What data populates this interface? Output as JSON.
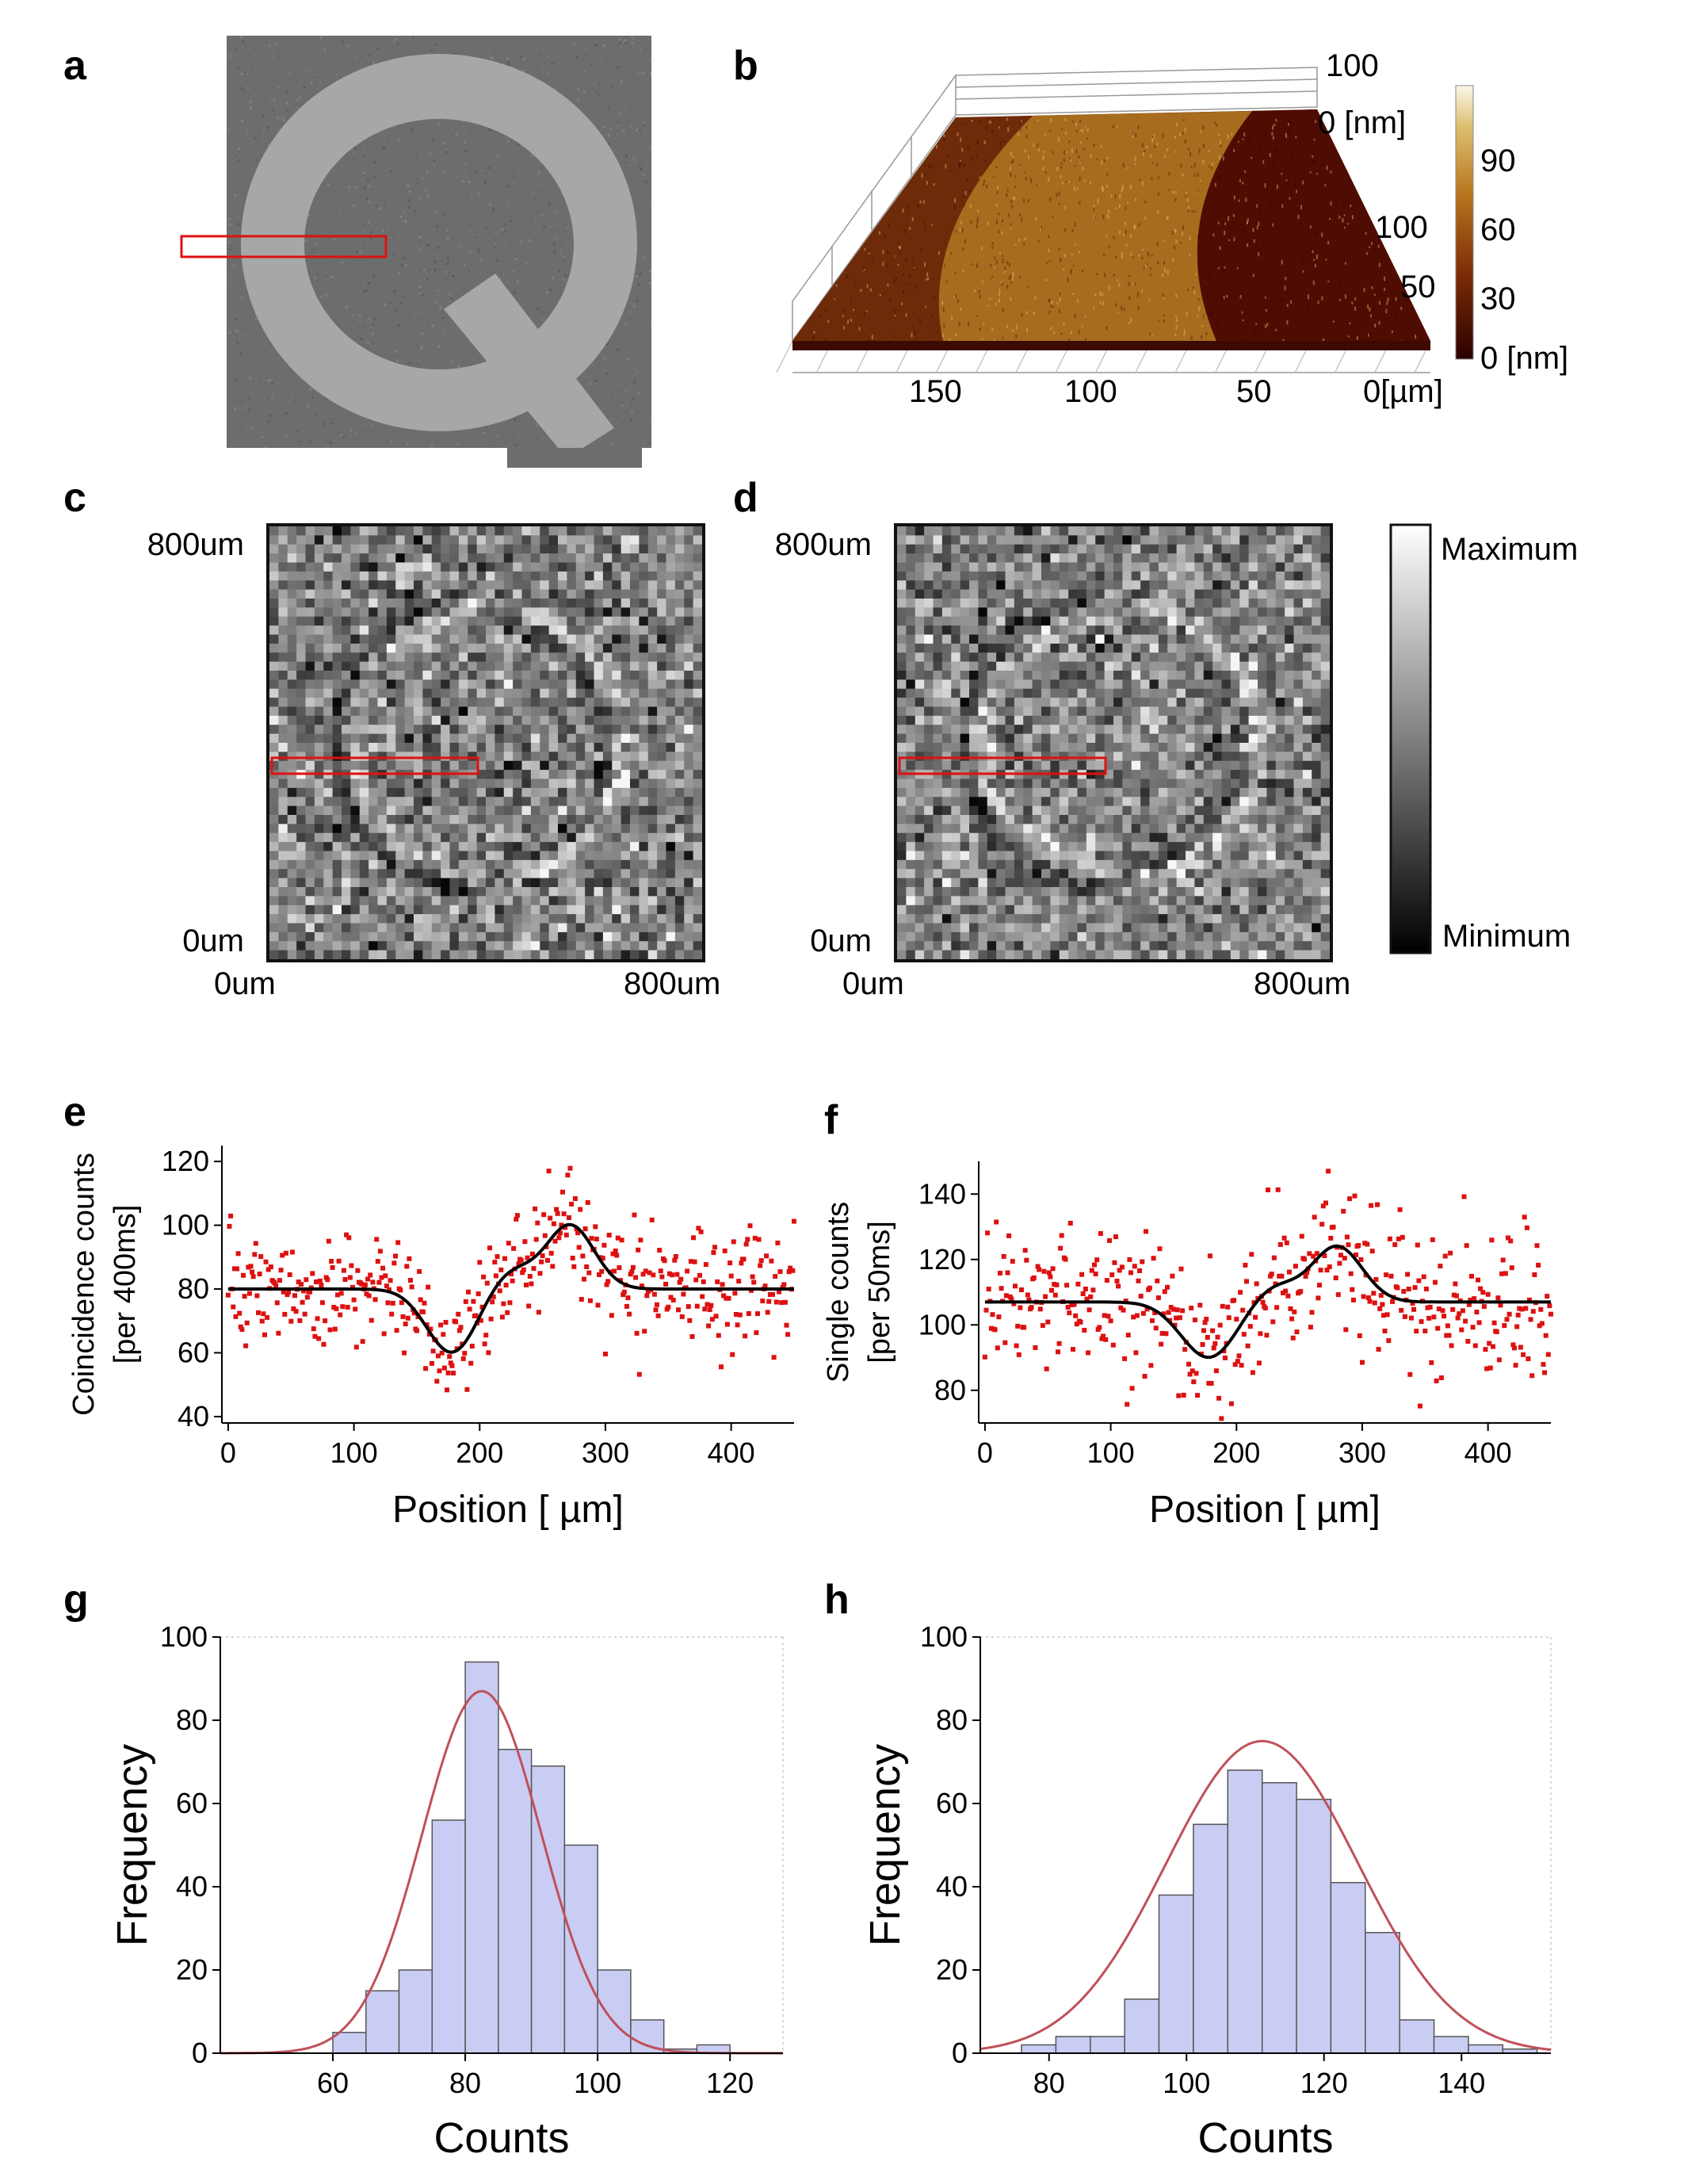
{
  "panels": {
    "a": {
      "label": "a"
    },
    "b": {
      "label": "b",
      "z_labels": [
        "100",
        "0 [nm]"
      ],
      "y_labels": [
        "100",
        "50"
      ],
      "x_labels": [
        "150",
        "100",
        "50",
        "0[µm]"
      ],
      "colorbar_labels": [
        "90",
        "60",
        "30",
        "0 [nm]"
      ]
    },
    "c": {
      "label": "c",
      "y_top": "800um",
      "y_bottom": "0um",
      "x_left": "0um",
      "x_right": "800um"
    },
    "d": {
      "label": "d",
      "y_top": "800um",
      "y_bottom": "0um",
      "x_left": "0um",
      "x_right": "800um"
    },
    "gray_colorbar": {
      "max_label": "Maximum",
      "min_label": "Minimum"
    },
    "e": {
      "label": "e"
    },
    "f": {
      "label": "f"
    },
    "g": {
      "label": "g"
    },
    "h": {
      "label": "h"
    }
  },
  "colors": {
    "scatter": "#dd1111",
    "fit": "#000000",
    "hist_fill": "#c9cdf3",
    "hist_fit": "#c0505a",
    "roi": "#dd1111"
  },
  "chart_data": [
    {
      "id": "e",
      "type": "scatter",
      "xlabel": "Position [ µm]",
      "ylabel": "Coincidence counts",
      "ylabel2": "[per 400ms]",
      "xlim": [
        -5,
        450
      ],
      "ylim": [
        38,
        125
      ],
      "xticks": [
        0,
        100,
        200,
        300,
        400
      ],
      "yticks": [
        40,
        60,
        80,
        100,
        120
      ],
      "baseline": 80,
      "noise": 9,
      "features": [
        {
          "center": 178,
          "width": 20,
          "amplitude": -20
        },
        {
          "center": 225,
          "width": 18,
          "amplitude": 6
        },
        {
          "center": 272,
          "width": 19,
          "amplitude": 20
        }
      ]
    },
    {
      "id": "f",
      "type": "scatter",
      "xlabel": "Position [ µm]",
      "ylabel": "Single counts",
      "ylabel2": "[per 50ms]",
      "xlim": [
        -5,
        450
      ],
      "ylim": [
        70,
        150
      ],
      "xticks": [
        0,
        100,
        200,
        300,
        400
      ],
      "yticks": [
        80,
        100,
        120,
        140
      ],
      "baseline": 107,
      "noise": 11,
      "features": [
        {
          "center": 178,
          "width": 22,
          "amplitude": -17
        },
        {
          "center": 230,
          "width": 18,
          "amplitude": 5
        },
        {
          "center": 280,
          "width": 20,
          "amplitude": 17
        }
      ]
    },
    {
      "id": "g",
      "type": "bar",
      "xlabel": "Counts",
      "ylabel": "Frequency",
      "xlim": [
        43,
        128
      ],
      "ylim": [
        0,
        100
      ],
      "xticks": [
        60,
        80,
        100,
        120
      ],
      "yticks": [
        0,
        20,
        40,
        60,
        80,
        100
      ],
      "bin_edges": [
        55,
        60,
        65,
        70,
        75,
        80,
        85,
        90,
        95,
        100,
        105,
        110,
        115,
        120
      ],
      "values": [
        0,
        5,
        15,
        20,
        56,
        94,
        73,
        69,
        50,
        20,
        8,
        1,
        2
      ],
      "fit": {
        "mean": 82.5,
        "sigma": 9,
        "peak": 87
      }
    },
    {
      "id": "h",
      "type": "bar",
      "xlabel": "Counts",
      "ylabel": "Frequency",
      "xlim": [
        70,
        153
      ],
      "ylim": [
        0,
        100
      ],
      "xticks": [
        80,
        100,
        120,
        140
      ],
      "yticks": [
        0,
        20,
        40,
        60,
        80,
        100
      ],
      "bin_edges": [
        76,
        81,
        86,
        91,
        96,
        101,
        106,
        111,
        116,
        121,
        126,
        131,
        136,
        141,
        146,
        151
      ],
      "values": [
        2,
        4,
        4,
        13,
        38,
        55,
        68,
        65,
        61,
        41,
        29,
        8,
        4,
        2,
        1
      ],
      "fit": {
        "mean": 111,
        "sigma": 14,
        "peak": 75
      }
    }
  ]
}
